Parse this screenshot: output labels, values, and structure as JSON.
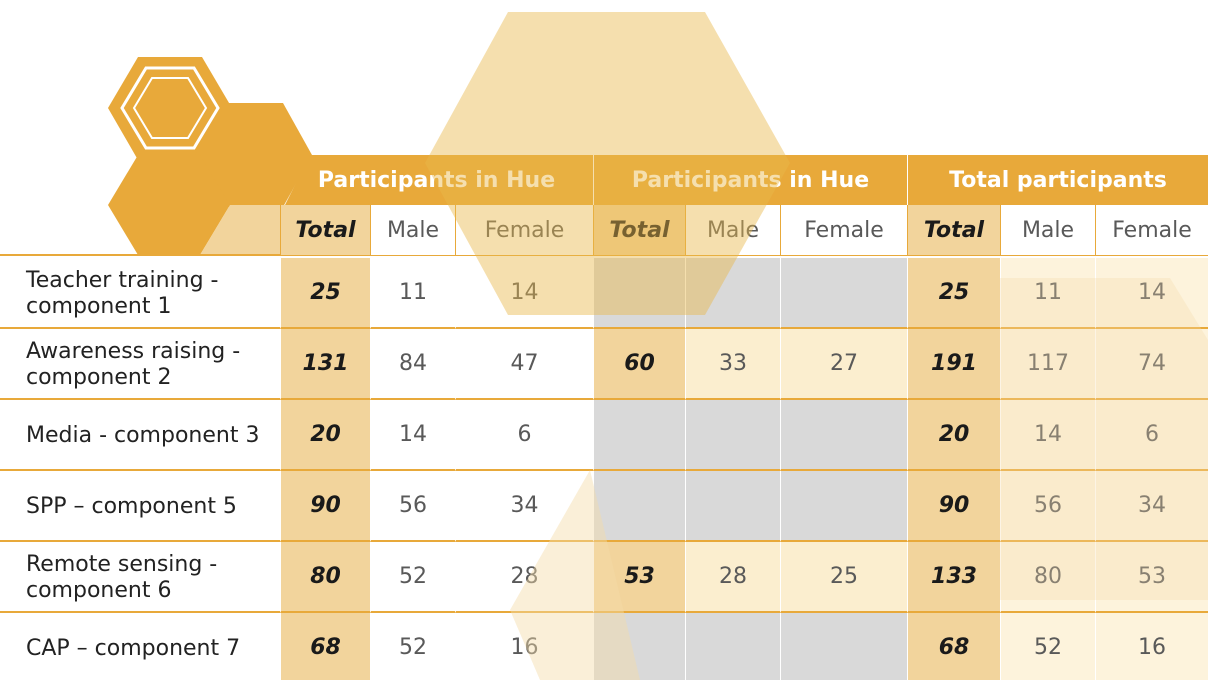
{
  "table": {
    "group_headers": [
      "Participants in Hue",
      "Participants in Hue",
      "Total participants"
    ],
    "sub_headers": [
      "Total",
      "Male",
      "Female",
      "Total",
      "Male",
      "Female",
      "Total",
      "Male",
      "Female"
    ],
    "rows": [
      [
        "Teacher training - component 1",
        25,
        11,
        14,
        null,
        null,
        null,
        25,
        11,
        14
      ],
      [
        "Awareness raising - component 2",
        131,
        84,
        47,
        60,
        33,
        27,
        191,
        117,
        74
      ],
      [
        "Media - component 3",
        20,
        14,
        6,
        null,
        null,
        null,
        20,
        14,
        6
      ],
      [
        "SPP – component 5",
        90,
        56,
        34,
        null,
        null,
        null,
        90,
        56,
        34
      ],
      [
        "Remote sensing - component 6",
        80,
        52,
        28,
        53,
        28,
        25,
        133,
        80,
        53
      ],
      [
        "CAP – component 7",
        68,
        52,
        16,
        null,
        null,
        null,
        68,
        52,
        16
      ]
    ]
  }
}
